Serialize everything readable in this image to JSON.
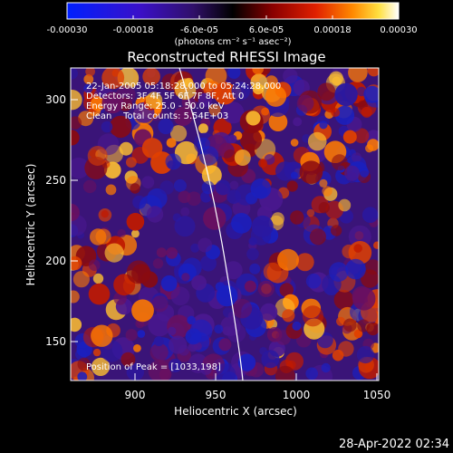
{
  "colorbar": {
    "ticks": [
      "-0.00030",
      "-0.00018",
      "-6.0e-05",
      "6.0e-05",
      "0.00018",
      "0.00030"
    ],
    "units": "(photons cm⁻² s⁻¹ asec⁻²)"
  },
  "plot": {
    "title": "Reconstructed RHESSI Image",
    "xlabel": "Heliocentric X (arcsec)",
    "ylabel": "Heliocentric Y (arcsec)",
    "x_ticks": [
      "900",
      "950",
      "1000",
      "1050"
    ],
    "y_ticks": [
      "150",
      "200",
      "250",
      "300"
    ],
    "x_range": [
      862,
      1050
    ],
    "y_range": [
      123,
      315
    ]
  },
  "annotations": {
    "time": "22-Jan-2005 05:18:28.000 to 05:24:28.000",
    "detectors": "Detectors: 3F 4F 5F 6F 7F 8F, Att 0",
    "energy": "Energy Range: 25.0 - 50.0 keV",
    "clean": "Clean    Total counts: 5.54E+03",
    "peak": "Position of Peak = [1033,198]"
  },
  "footer": {
    "timestamp": "28-Apr-2022 02:34"
  }
}
